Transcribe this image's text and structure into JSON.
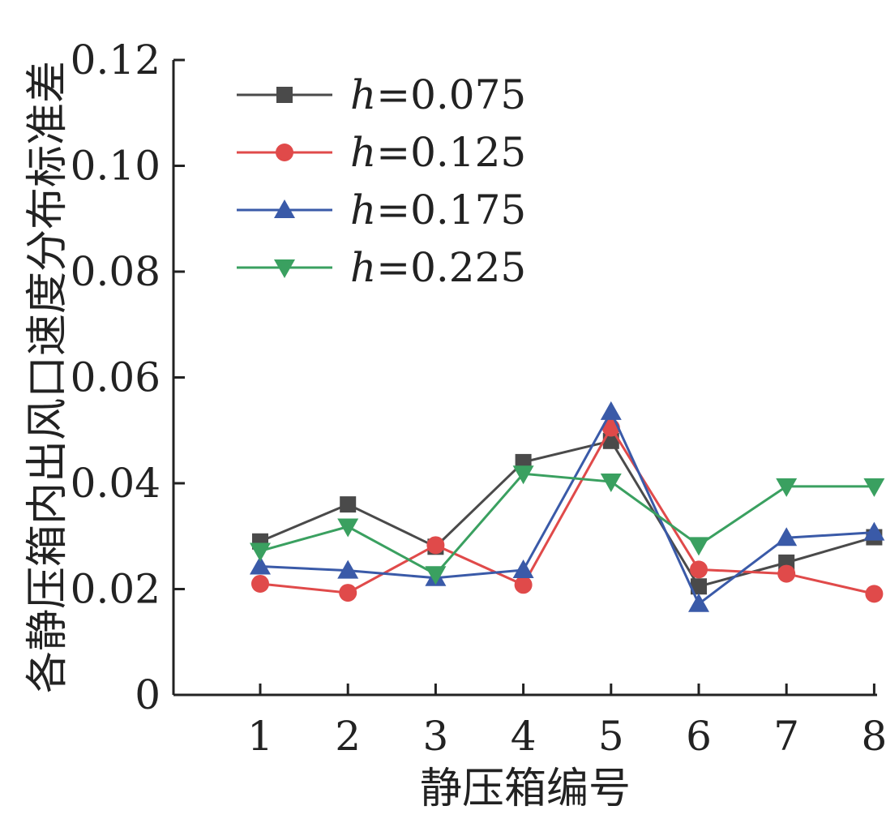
{
  "chart_data": {
    "type": "line",
    "xlabel": "静压箱编号",
    "ylabel": "各静压箱内出风口速度分布标准差",
    "categories": [
      "1",
      "2",
      "3",
      "4",
      "5",
      "6",
      "7",
      "8"
    ],
    "ylim": [
      0,
      0.12
    ],
    "yticks": [
      "0",
      "0.02",
      "0.04",
      "0.06",
      "0.08",
      "0.10",
      "0.12"
    ],
    "ytick_values": [
      0,
      0.02,
      0.04,
      0.06,
      0.08,
      0.1,
      0.12
    ],
    "grid": false,
    "legend_position": "top-left",
    "series": [
      {
        "name": "h=0.075",
        "name_var": "h",
        "name_value": "=0.075",
        "color": "#4a4a4a",
        "marker": "square",
        "values": [
          0.029,
          0.036,
          0.028,
          0.044,
          0.048,
          0.0205,
          0.025,
          0.0298
        ]
      },
      {
        "name": "h=0.125",
        "name_var": "h",
        "name_value": "=0.125",
        "color": "#e04a4a",
        "marker": "circle",
        "values": [
          0.021,
          0.0193,
          0.0283,
          0.0208,
          0.0505,
          0.0237,
          0.0229,
          0.0191
        ]
      },
      {
        "name": "h=0.175",
        "name_var": "h",
        "name_value": "=0.175",
        "color": "#3a5aa8",
        "marker": "triangle-up",
        "values": [
          0.0243,
          0.0235,
          0.0221,
          0.0236,
          0.0535,
          0.0172,
          0.0297,
          0.0307
        ]
      },
      {
        "name": "h=0.225",
        "name_var": "h",
        "name_value": "=0.225",
        "color": "#3aa060",
        "marker": "triangle-down",
        "values": [
          0.0272,
          0.0318,
          0.0228,
          0.0418,
          0.0403,
          0.0283,
          0.0394,
          0.0394
        ]
      }
    ]
  }
}
